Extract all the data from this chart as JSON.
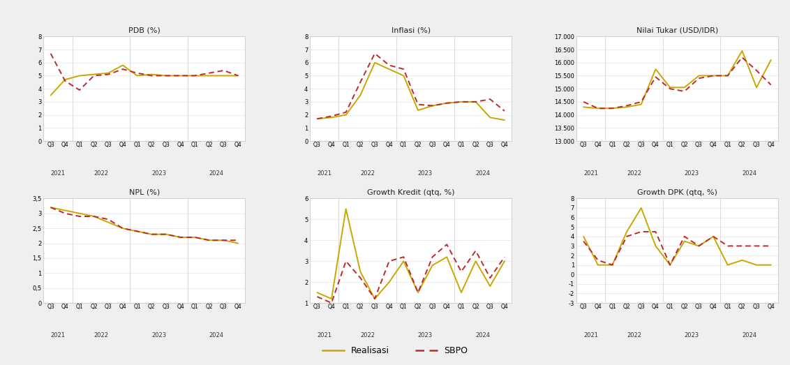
{
  "x_labels": [
    "Q3",
    "Q4",
    "Q1",
    "Q2",
    "Q3",
    "Q4",
    "Q1",
    "Q2",
    "Q3",
    "Q4",
    "Q1",
    "Q2",
    "Q3",
    "Q4"
  ],
  "x_years": [
    "2021",
    "2022",
    "2023",
    "2024"
  ],
  "year_centers": [
    0.5,
    3.5,
    7.5,
    11.5
  ],
  "year_seps": [
    1.5,
    5.5,
    9.5
  ],
  "charts": [
    {
      "title": "PDB (%)",
      "ylim": [
        0,
        8
      ],
      "yticks": [
        0,
        1,
        2,
        3,
        4,
        5,
        6,
        7,
        8
      ],
      "ytick_labels": [
        "0",
        "1",
        "2",
        "3",
        "4",
        "5",
        "6",
        "7",
        "8"
      ],
      "realisasi": [
        3.5,
        4.7,
        5.0,
        5.1,
        5.2,
        5.8,
        5.0,
        5.1,
        5.0,
        5.0,
        5.0,
        5.0,
        5.0,
        5.0
      ],
      "sbpo": [
        6.7,
        4.6,
        3.9,
        5.0,
        5.1,
        5.5,
        5.2,
        5.0,
        5.0,
        5.0,
        5.0,
        5.2,
        5.4,
        5.0
      ]
    },
    {
      "title": "Inflasi (%)",
      "ylim": [
        0,
        8
      ],
      "yticks": [
        0,
        1,
        2,
        3,
        4,
        5,
        6,
        7,
        8
      ],
      "ytick_labels": [
        "0",
        "1",
        "2",
        "3",
        "4",
        "5",
        "6",
        "7",
        "8"
      ],
      "realisasi": [
        1.7,
        1.8,
        2.0,
        3.5,
        6.0,
        5.5,
        5.0,
        2.35,
        2.7,
        2.9,
        3.0,
        3.0,
        1.8,
        1.6
      ],
      "sbpo": [
        1.7,
        1.9,
        2.2,
        4.5,
        6.7,
        5.8,
        5.5,
        2.8,
        2.7,
        2.9,
        3.0,
        3.0,
        3.2,
        2.3
      ]
    },
    {
      "title": "Nilai Tukar (USD/IDR)",
      "ylim": [
        13000,
        17000
      ],
      "yticks": [
        13000,
        13500,
        14000,
        14500,
        15000,
        15500,
        16000,
        16500,
        17000
      ],
      "ytick_labels": [
        "13.000",
        "13.500",
        "14.000",
        "14.500",
        "15.000",
        "15.500",
        "16.000",
        "16.500",
        "17.000"
      ],
      "realisasi": [
        14300,
        14250,
        14250,
        14300,
        14400,
        15750,
        15050,
        15050,
        15500,
        15500,
        15500,
        16450,
        15050,
        16100
      ],
      "sbpo": [
        14500,
        14250,
        14250,
        14350,
        14500,
        15450,
        15000,
        14900,
        15400,
        15500,
        15500,
        16200,
        15700,
        15150
      ]
    },
    {
      "title": "NPL (%)",
      "ylim": [
        0,
        3.5
      ],
      "yticks": [
        0,
        0.5,
        1.0,
        1.5,
        2.0,
        2.5,
        3.0,
        3.5
      ],
      "ytick_labels": [
        "0",
        "0,5",
        "1",
        "1,5",
        "2",
        "2,5",
        "3",
        "3,5"
      ],
      "realisasi": [
        3.2,
        3.1,
        3.0,
        2.9,
        2.7,
        2.5,
        2.4,
        2.3,
        2.3,
        2.2,
        2.2,
        2.1,
        2.1,
        2.0
      ],
      "sbpo": [
        3.2,
        3.0,
        2.9,
        2.9,
        2.8,
        2.5,
        2.4,
        2.3,
        2.3,
        2.2,
        2.2,
        2.1,
        2.1,
        2.1
      ]
    },
    {
      "title": "Growth Kredit (qtq, %)",
      "ylim": [
        1,
        6
      ],
      "yticks": [
        1,
        2,
        3,
        4,
        5,
        6
      ],
      "ytick_labels": [
        "1",
        "2",
        "3",
        "4",
        "5",
        "6"
      ],
      "realisasi": [
        1.5,
        1.2,
        5.5,
        2.5,
        1.2,
        2.0,
        3.0,
        1.5,
        2.8,
        3.2,
        1.5,
        3.0,
        1.8,
        3.0
      ],
      "sbpo": [
        1.3,
        1.0,
        3.0,
        2.2,
        1.2,
        3.0,
        3.2,
        1.5,
        3.2,
        3.8,
        2.5,
        3.5,
        2.2,
        3.2
      ]
    },
    {
      "title": "Growth DPK (qtq, %)",
      "ylim": [
        -3,
        8
      ],
      "yticks": [
        -3,
        -2,
        -1,
        0,
        1,
        2,
        3,
        4,
        5,
        6,
        7,
        8
      ],
      "ytick_labels": [
        "-3",
        "-2",
        "-1",
        "0",
        "1",
        "2",
        "3",
        "4",
        "5",
        "6",
        "7",
        "8"
      ],
      "realisasi": [
        4.0,
        1.0,
        1.0,
        4.5,
        7.0,
        3.0,
        1.0,
        3.5,
        3.0,
        4.0,
        1.0,
        1.5,
        1.0,
        1.0
      ],
      "sbpo": [
        3.5,
        1.5,
        1.0,
        4.0,
        4.5,
        4.5,
        1.0,
        4.0,
        3.0,
        4.0,
        3.0,
        3.0,
        3.0,
        3.0
      ]
    }
  ],
  "color_realisasi": "#C8A800",
  "color_sbpo": "#C0282D",
  "legend_label_realisasi": "Realisasi",
  "legend_label_sbpo": "SBPO",
  "bg_color": "#EFEFEF",
  "panel_bg": "#FFFFFF",
  "panel_edge": "#CCCCCC"
}
